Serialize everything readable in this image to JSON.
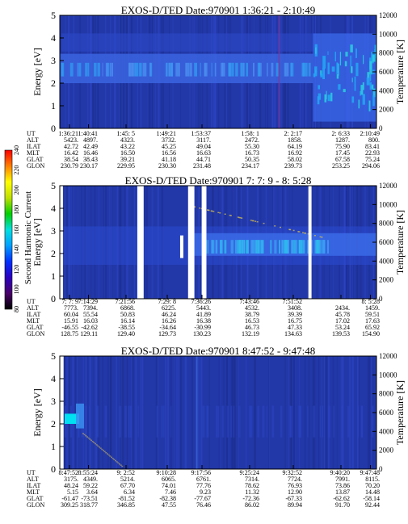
{
  "chart_data": [
    {
      "type": "heatmap",
      "title": "EXOS-D/TED   Date:970901  1:36:21 - 2:10:49",
      "ylabel": "Energy [eV]",
      "y2label": "Temperature [K]",
      "ylim": [
        0,
        5
      ],
      "y_ticks": [
        "0",
        "1",
        "2",
        "3",
        "4",
        "5"
      ],
      "y2lim": [
        0,
        12000
      ],
      "y2_ticks": [
        "0",
        "2000",
        "4000",
        "6000",
        "8000",
        "10000",
        "12000"
      ],
      "gaps": [],
      "ephemeris": {
        "labels": [
          "UT",
          "ALT",
          "ILAT",
          "MLT",
          "GLAT",
          "GLON"
        ],
        "columns": [
          [
            "1:36:21",
            "5423.",
            "42.72",
            "16.42",
            "38.54",
            "230.79"
          ],
          [
            "1:40:41",
            "4897.",
            "42.49",
            "16.46",
            "38.43",
            "230.17"
          ],
          [
            "1:45: 5",
            "4323.",
            "43.22",
            "16.50",
            "39.21",
            "229.95"
          ],
          [
            "1:49:21",
            "3732.",
            "45.25",
            "16.56",
            "41.18",
            "230.30"
          ],
          [
            "1:53:37",
            "3117.",
            "49.04",
            "16.63",
            "44.71",
            "231.48"
          ],
          [
            "1:58: 1",
            "2472.",
            "55.30",
            "16.73",
            "50.35",
            "234.17"
          ],
          [
            "2: 2:17",
            "1858.",
            "64.19",
            "16.92",
            "58.02",
            "239.73"
          ],
          [
            "2: 6:33",
            "1287.",
            "75.90",
            "17.45",
            "67.58",
            "253.25"
          ],
          [
            "2:10:49",
            "800.",
            "83.41",
            "22.93",
            "75.24",
            "294.06"
          ]
        ]
      }
    },
    {
      "type": "heatmap",
      "title": "EXOS-D/TED   Date:970901  7: 7: 9 - 8: 5:28",
      "ylabel": "Energy [eV]",
      "y2label": "Temperature [K]",
      "ylim": [
        0,
        5
      ],
      "y_ticks": [
        "0",
        "1",
        "2",
        "3",
        "4",
        "5"
      ],
      "y2lim": [
        0,
        12000
      ],
      "y2_ticks": [
        "0",
        "2000",
        "4000",
        "6000",
        "8000",
        "10000",
        "12000"
      ],
      "gaps": [
        [
          0.0,
          0.01
        ],
        [
          0.245,
          0.265
        ],
        [
          0.405,
          0.425
        ],
        [
          0.448,
          0.463
        ],
        [
          0.785,
          0.795
        ]
      ],
      "ephemeris": {
        "labels": [
          "UT",
          "ALT",
          "ILAT",
          "MLT",
          "GLAT",
          "GLON"
        ],
        "columns": [
          [
            "7: 7: 9",
            "7773.",
            "60.04",
            "15.91",
            "-46.55",
            "128.75"
          ],
          [
            "7:14:29",
            "7394.",
            "55.54",
            "16.03",
            "-42.62",
            "129.11"
          ],
          [
            "7:21:56",
            "6868.",
            "50.83",
            "16.14",
            "-38.55",
            "129.40"
          ],
          [
            "7:29: 8",
            "6225.",
            "46.24",
            "16.26",
            "-34.64",
            "129.73"
          ],
          [
            "7:36:26",
            "5443.",
            "41.89",
            "16.38",
            "-30.99",
            "130.23"
          ],
          [
            "7:43:46",
            "4532.",
            "38.79",
            "16.53",
            "46.73",
            "132.19"
          ],
          [
            "7:51:52",
            "3408.",
            "39.39",
            "16.75",
            "47.33",
            "134.63"
          ],
          [
            "",
            "2434.",
            "45.78",
            "17.02",
            "53.24",
            "139.53"
          ],
          [
            "8: 5:28",
            "1459.",
            "59.51",
            "17.63",
            "65.92",
            "154.90"
          ]
        ]
      }
    },
    {
      "type": "heatmap",
      "title": "EXOS-D/TED   Date:970901  8:47:52 - 9:47:48",
      "ylabel": "Energy [eV]",
      "y2label": "Temperature [K]",
      "ylim": [
        0,
        5
      ],
      "y_ticks": [
        "0",
        "1",
        "2",
        "3",
        "4",
        "5"
      ],
      "y2lim": [
        0,
        12000
      ],
      "y2_ticks": [
        "0",
        "2000",
        "4000",
        "6000",
        "8000",
        "10000",
        "12000"
      ],
      "gaps": [
        [
          0.0,
          0.012
        ]
      ],
      "ephemeris": {
        "labels": [
          "UT",
          "ALT",
          "ILAT",
          "MLT",
          "GLAT",
          "GLON"
        ],
        "columns": [
          [
            "8:47:52",
            "3175.",
            "48.24",
            "5.15",
            "-61.47",
            "309.25"
          ],
          [
            "8:55:24",
            "4349.",
            "59.22",
            "3.64",
            "-73.51",
            "318.77"
          ],
          [
            "9: 2:52",
            "5214.",
            "67.70",
            "6.34",
            "-81.52",
            "346.85"
          ],
          [
            "9:10:28",
            "6065.",
            "74.01",
            "7.46",
            "-82.38",
            "47.55"
          ],
          [
            "9:17:56",
            "6761.",
            "77.76",
            "9.23",
            "-77.67",
            "76.46"
          ],
          [
            "9:25:24",
            "7314.",
            "78.62",
            "11.32",
            "-72.36",
            "86.02"
          ],
          [
            "9:32:52",
            "7724.",
            "76.93",
            "12.90",
            "-67.33",
            "89.94"
          ],
          [
            "9:40:20",
            "7991.",
            "73.86",
            "13.87",
            "-62.62",
            "91.70"
          ],
          [
            "9:47:48",
            "8115.",
            "70.20",
            "14.48",
            "-58.14",
            "92.44"
          ]
        ]
      }
    }
  ],
  "colorbar": {
    "label": "Second Harmonic Current",
    "ticks": [
      "80",
      "100",
      "120",
      "140",
      "160",
      "180",
      "200",
      "220",
      "240"
    ],
    "range": [
      80,
      240
    ],
    "colors": [
      "#000000",
      "#4a006a",
      "#2a00c0",
      "#0030ff",
      "#00a0ff",
      "#00e0e0",
      "#00d000",
      "#c0e000",
      "#ffff00",
      "#ff8000",
      "#ff0000"
    ]
  }
}
